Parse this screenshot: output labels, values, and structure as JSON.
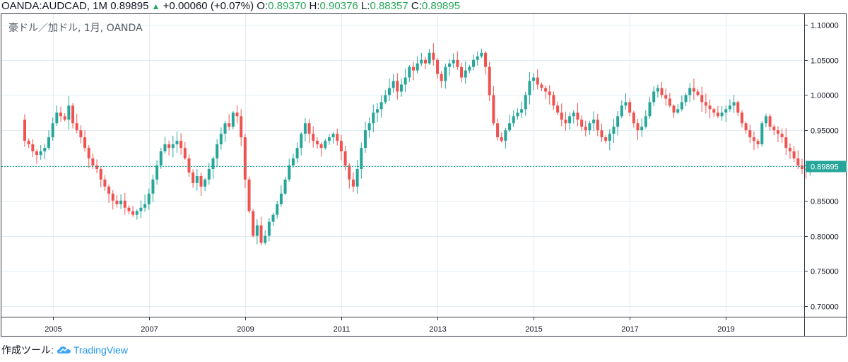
{
  "header": {
    "symbol": "OANDA:AUDCAD, 1M",
    "last": "0.89895",
    "change_icon": "triangle-up-icon",
    "change": "+0.00060 (+0.07%)",
    "o_label": "O:",
    "o_value": "0.89370",
    "h_label": "H:",
    "h_value": "0.90376",
    "l_label": "L:",
    "l_value": "0.88357",
    "c_label": "C:",
    "c_value": "0.89895"
  },
  "footer": {
    "made_with": "作成ツール:",
    "brand": "TradingView",
    "brand_icon": "tradingview-cloud-icon"
  },
  "colors": {
    "up": "#26a69a",
    "down": "#ef5350",
    "grid": "#e1ecf2",
    "price_line": "#26a69a",
    "value_green": "#26a65b",
    "brand": "#2196f3"
  },
  "chart_data": {
    "type": "candlestick",
    "title": "豪ドル／加ドル, 1月, OANDA",
    "last_price_label": "0.89895",
    "last_price": 0.89895,
    "ylim": [
      0.685,
      1.115
    ],
    "y_ticks": [
      0.7,
      0.75,
      0.8,
      0.85,
      0.9,
      0.95,
      1.0,
      1.05,
      1.1
    ],
    "y_tick_labels": [
      "0.70000",
      "0.75000",
      "0.80000",
      "0.85000",
      "0.90000",
      "0.95000",
      "1.00000",
      "1.05000",
      "1.10000"
    ],
    "x_start": "2004-06",
    "x_ticks": [
      "2005",
      "2007",
      "2009",
      "2011",
      "2013",
      "2015",
      "2017",
      "2019"
    ],
    "monthly_closes": [
      0.935,
      0.93,
      0.92,
      0.915,
      0.92,
      0.925,
      0.94,
      0.96,
      0.975,
      0.97,
      0.965,
      0.985,
      0.96,
      0.95,
      0.94,
      0.925,
      0.91,
      0.9,
      0.895,
      0.88,
      0.87,
      0.86,
      0.85,
      0.845,
      0.85,
      0.84,
      0.835,
      0.83,
      0.835,
      0.84,
      0.845,
      0.86,
      0.88,
      0.9,
      0.92,
      0.93,
      0.925,
      0.93,
      0.935,
      0.925,
      0.91,
      0.89,
      0.875,
      0.885,
      0.87,
      0.88,
      0.895,
      0.91,
      0.93,
      0.945,
      0.96,
      0.955,
      0.975,
      0.97,
      0.94,
      0.88,
      0.835,
      0.8,
      0.815,
      0.79,
      0.8,
      0.82,
      0.83,
      0.845,
      0.86,
      0.88,
      0.9,
      0.91,
      0.925,
      0.945,
      0.96,
      0.945,
      0.935,
      0.93,
      0.925,
      0.935,
      0.94,
      0.945,
      0.935,
      0.92,
      0.9,
      0.88,
      0.87,
      0.895,
      0.925,
      0.95,
      0.96,
      0.975,
      0.98,
      0.99,
      1.0,
      1.01,
      1.02,
      1.005,
      1.015,
      1.025,
      1.04,
      1.035,
      1.045,
      1.05,
      1.045,
      1.06,
      1.05,
      1.03,
      1.02,
      1.04,
      1.045,
      1.05,
      1.04,
      1.025,
      1.035,
      1.04,
      1.05,
      1.055,
      1.06,
      1.04,
      1.0,
      0.96,
      0.94,
      0.935,
      0.95,
      0.96,
      0.97,
      0.975,
      0.98,
      1.0,
      1.02,
      1.025,
      1.015,
      1.01,
      1.005,
      1.0,
      0.985,
      0.975,
      0.965,
      0.96,
      0.97,
      0.975,
      0.965,
      0.955,
      0.95,
      0.96,
      0.965,
      0.95,
      0.94,
      0.935,
      0.945,
      0.955,
      0.97,
      0.985,
      0.99,
      0.975,
      0.96,
      0.95,
      0.955,
      0.97,
      0.99,
      1.005,
      1.01,
      1.0,
      0.995,
      0.985,
      0.975,
      0.98,
      0.99,
      1.0,
      1.01,
      1.005,
      1.0,
      0.99,
      0.985,
      0.98,
      0.975,
      0.97,
      0.975,
      0.98,
      0.985,
      0.99,
      0.975,
      0.96,
      0.95,
      0.94,
      0.935,
      0.93,
      0.96,
      0.97,
      0.955,
      0.95,
      0.945,
      0.94,
      0.925,
      0.92,
      0.91,
      0.9,
      0.895,
      0.8937,
      0.89895
    ]
  }
}
